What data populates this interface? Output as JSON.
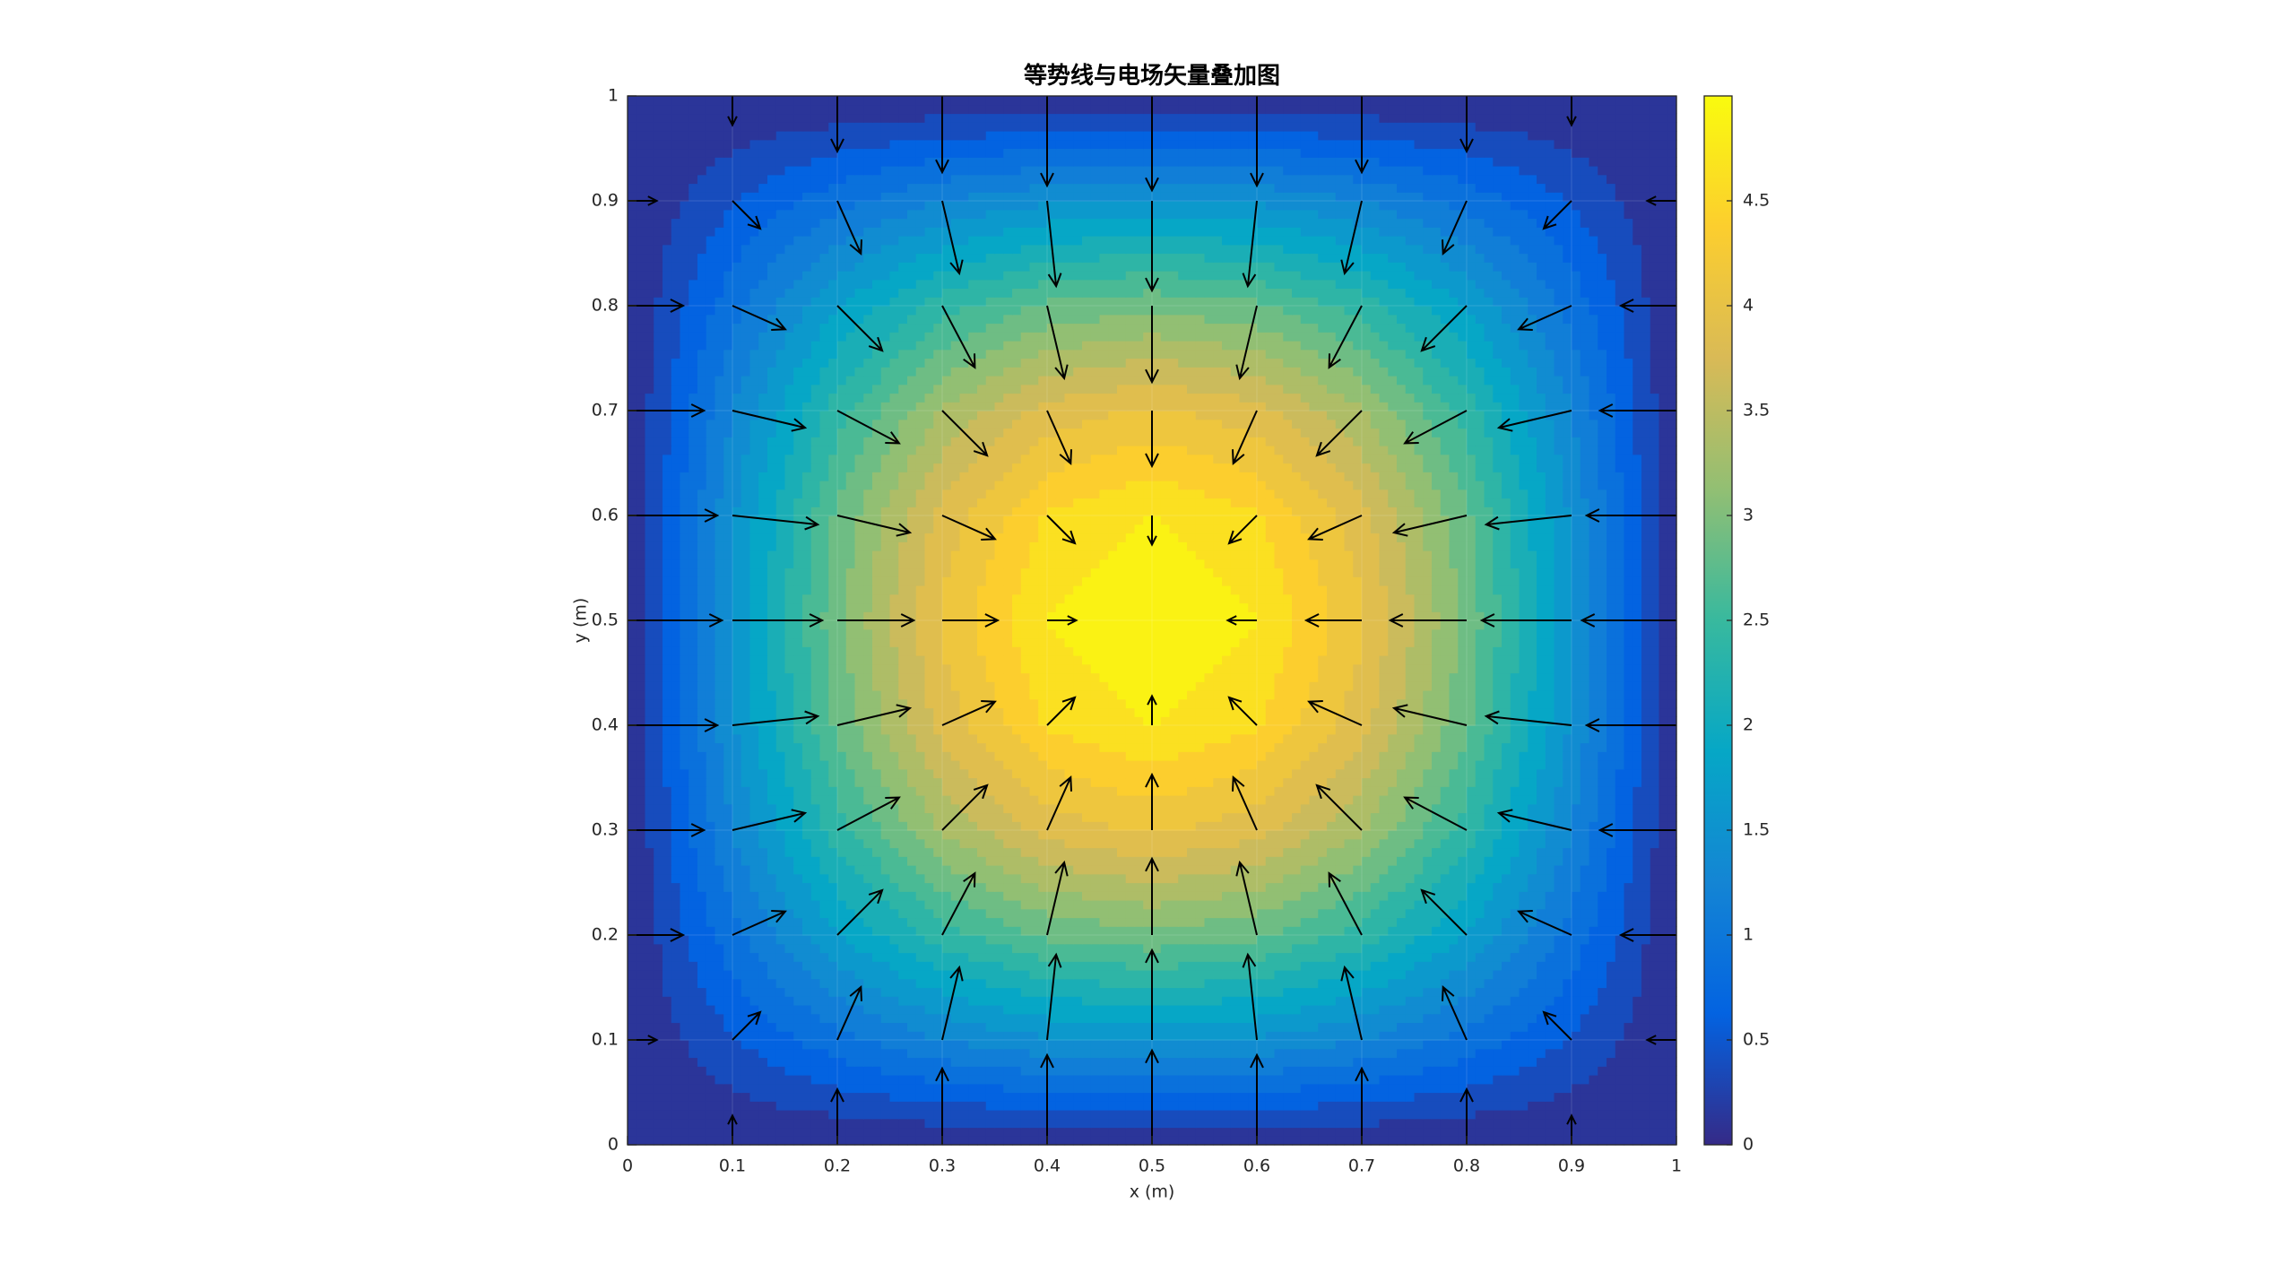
{
  "chart_data": {
    "type": "contourf-quiver",
    "title": "等势线与电场矢量叠加图",
    "xlabel": "x (m)",
    "ylabel": "y (m)",
    "xlim": [
      0,
      1
    ],
    "ylim": [
      0,
      1
    ],
    "xticks": [
      0,
      0.1,
      0.2,
      0.3,
      0.4,
      0.5,
      0.6,
      0.7,
      0.8,
      0.9,
      1
    ],
    "yticks": [
      0,
      0.1,
      0.2,
      0.3,
      0.4,
      0.5,
      0.6,
      0.7,
      0.8,
      0.9,
      1
    ],
    "grid": true,
    "clim": [
      0,
      5
    ],
    "cticks": [
      0,
      0.5,
      1,
      1.5,
      2,
      2.5,
      3,
      3.5,
      4,
      4.5
    ],
    "n_levels": 20,
    "colormap": [
      "#352a87",
      "#0363e1",
      "#1485d4",
      "#06a7c6",
      "#38b99e",
      "#92bf73",
      "#d9ba56",
      "#fcce2e",
      "#f9fb0e"
    ],
    "arrow_color": "#000000",
    "x": [
      0,
      0.1,
      0.2,
      0.3,
      0.4,
      0.5,
      0.6,
      0.7,
      0.8,
      0.9,
      1
    ],
    "y": [
      0,
      0.1,
      0.2,
      0.3,
      0.4,
      0.5,
      0.6,
      0.7,
      0.8,
      0.9,
      1
    ],
    "z": [
      [
        0,
        0,
        0,
        0,
        0,
        0,
        0,
        0,
        0,
        0,
        0
      ],
      [
        0,
        0.48,
        0.91,
        1.25,
        1.47,
        1.55,
        1.47,
        1.25,
        0.91,
        0.48,
        0
      ],
      [
        0,
        0.91,
        1.73,
        2.38,
        2.8,
        2.94,
        2.8,
        2.38,
        1.73,
        0.91,
        0
      ],
      [
        0,
        1.25,
        2.38,
        3.27,
        3.85,
        4.05,
        3.85,
        3.27,
        2.38,
        1.25,
        0
      ],
      [
        0,
        1.47,
        2.8,
        3.85,
        4.52,
        4.76,
        4.52,
        3.85,
        2.8,
        1.47,
        0
      ],
      [
        0,
        1.55,
        2.94,
        4.05,
        4.76,
        5,
        4.76,
        4.05,
        2.94,
        1.55,
        0
      ],
      [
        0,
        1.47,
        2.8,
        3.85,
        4.52,
        4.76,
        4.52,
        3.85,
        2.8,
        1.47,
        0
      ],
      [
        0,
        1.25,
        2.38,
        3.27,
        3.85,
        4.05,
        3.85,
        3.27,
        2.38,
        1.25,
        0
      ],
      [
        0,
        0.91,
        1.73,
        2.38,
        2.8,
        2.94,
        2.8,
        2.38,
        1.73,
        0.91,
        0
      ],
      [
        0,
        0.48,
        0.91,
        1.25,
        1.47,
        1.55,
        1.47,
        1.25,
        0.91,
        0.48,
        0
      ],
      [
        0,
        0,
        0,
        0,
        0,
        0,
        0,
        0,
        0,
        0,
        0
      ]
    ],
    "u": [
      [
        0,
        0,
        0,
        0,
        0,
        0,
        0,
        0,
        0,
        0,
        0
      ],
      [
        4.85,
        4.62,
        3.93,
        2.85,
        1.5,
        0,
        -1.5,
        -2.85,
        -3.93,
        -4.62,
        -4.85
      ],
      [
        9.24,
        8.78,
        7.47,
        5.43,
        2.85,
        0,
        -2.85,
        -5.43,
        -7.47,
        -8.78,
        -9.24
      ],
      [
        12.71,
        12.08,
        10.28,
        7.47,
        3.93,
        0,
        -3.93,
        -7.47,
        -10.28,
        -12.08,
        -12.71
      ],
      [
        14.94,
        14.21,
        12.08,
        8.78,
        4.62,
        0,
        -4.62,
        -8.78,
        -12.08,
        -14.21,
        -14.94
      ],
      [
        15.71,
        14.94,
        12.71,
        9.24,
        4.85,
        0,
        -4.85,
        -9.24,
        -12.71,
        -14.94,
        -15.71
      ],
      [
        14.94,
        14.21,
        12.08,
        8.78,
        4.62,
        0,
        -4.62,
        -8.78,
        -12.08,
        -14.21,
        -14.94
      ],
      [
        12.71,
        12.08,
        10.28,
        7.47,
        3.93,
        0,
        -3.93,
        -7.47,
        -10.28,
        -12.08,
        -12.71
      ],
      [
        9.24,
        8.78,
        7.47,
        5.43,
        2.85,
        0,
        -2.85,
        -5.43,
        -7.47,
        -8.78,
        -9.24
      ],
      [
        4.85,
        4.62,
        3.93,
        2.85,
        1.5,
        0,
        -1.5,
        -2.85,
        -3.93,
        -4.62,
        -4.85
      ],
      [
        0,
        0,
        0,
        0,
        0,
        0,
        0,
        0,
        0,
        0,
        0
      ]
    ],
    "v": [
      [
        0,
        4.85,
        9.24,
        12.71,
        14.94,
        15.71,
        14.94,
        12.71,
        9.24,
        4.85,
        0
      ],
      [
        0,
        4.62,
        8.78,
        12.08,
        14.21,
        14.94,
        14.21,
        12.08,
        8.78,
        4.62,
        0
      ],
      [
        0,
        3.93,
        7.47,
        10.28,
        12.08,
        12.71,
        12.08,
        10.28,
        7.47,
        3.93,
        0
      ],
      [
        0,
        2.85,
        5.43,
        7.47,
        8.78,
        9.24,
        8.78,
        7.47,
        5.43,
        2.85,
        0
      ],
      [
        0,
        1.5,
        2.85,
        3.93,
        4.62,
        4.85,
        4.62,
        3.93,
        2.85,
        1.5,
        0
      ],
      [
        0,
        0,
        0,
        0,
        0,
        0,
        0,
        0,
        0,
        0,
        0
      ],
      [
        0,
        -1.5,
        -2.85,
        -3.93,
        -4.62,
        -4.85,
        -4.62,
        -3.93,
        -2.85,
        -1.5,
        0
      ],
      [
        0,
        -2.85,
        -5.43,
        -7.47,
        -8.78,
        -9.24,
        -8.78,
        -7.47,
        -5.43,
        -2.85,
        0
      ],
      [
        0,
        -3.93,
        -7.47,
        -10.28,
        -12.08,
        -12.71,
        -12.08,
        -10.28,
        -7.47,
        -3.93,
        0
      ],
      [
        0,
        -4.62,
        -8.78,
        -12.08,
        -14.21,
        -14.94,
        -14.21,
        -12.08,
        -8.78,
        -4.62,
        0
      ],
      [
        0,
        -4.85,
        -9.24,
        -12.71,
        -14.94,
        -15.71,
        -14.94,
        -12.71,
        -9.24,
        -4.85,
        0
      ]
    ]
  }
}
